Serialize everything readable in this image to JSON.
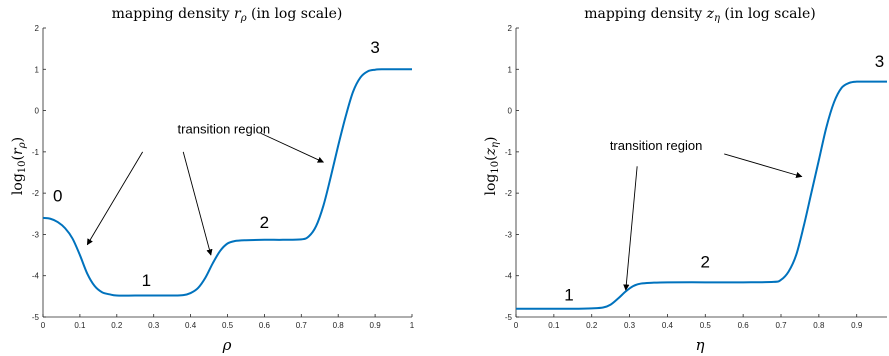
{
  "chart_data": [
    {
      "type": "line",
      "title": "mapping density r_ρ (in log scale)",
      "title_text": "mapping density ",
      "title_var": "r",
      "title_sub": "ρ",
      "title_suffix": " (in log scale)",
      "xlabel": "ρ",
      "ylabel": "log10(r_ρ)",
      "ylabel_base": "log",
      "ylabel_sub10": "10",
      "ylabel_open": "(",
      "ylabel_var": "r",
      "ylabel_var_sub": "ρ",
      "ylabel_close": ")",
      "xlim": [
        0,
        1
      ],
      "ylim": [
        -5,
        2
      ],
      "xticks": [
        "0",
        "0.1",
        "0.2",
        "0.3",
        "0.4",
        "0.5",
        "0.6",
        "0.7",
        "0.8",
        "0.9",
        "1"
      ],
      "yticks": [
        "-5",
        "-4",
        "-3",
        "-2",
        "-1",
        "0",
        "1",
        "2"
      ],
      "x": [
        0,
        0.02,
        0.04,
        0.06,
        0.08,
        0.1,
        0.12,
        0.14,
        0.16,
        0.18,
        0.2,
        0.25,
        0.3,
        0.35,
        0.38,
        0.4,
        0.42,
        0.44,
        0.46,
        0.48,
        0.5,
        0.52,
        0.55,
        0.6,
        0.65,
        0.7,
        0.72,
        0.74,
        0.76,
        0.78,
        0.8,
        0.82,
        0.84,
        0.86,
        0.88,
        0.9,
        0.92,
        0.95,
        1.0
      ],
      "y": [
        -2.6,
        -2.62,
        -2.7,
        -2.85,
        -3.1,
        -3.5,
        -3.95,
        -4.25,
        -4.4,
        -4.45,
        -4.48,
        -4.48,
        -4.48,
        -4.48,
        -4.47,
        -4.42,
        -4.3,
        -4.05,
        -3.7,
        -3.4,
        -3.22,
        -3.16,
        -3.14,
        -3.13,
        -3.13,
        -3.12,
        -3.05,
        -2.8,
        -2.3,
        -1.6,
        -0.85,
        -0.15,
        0.45,
        0.8,
        0.95,
        0.99,
        1.0,
        1.0,
        1.0
      ],
      "labels": [
        {
          "text": "0",
          "x": 0.04,
          "y": -2.2
        },
        {
          "text": "1",
          "x": 0.28,
          "y": -4.25
        },
        {
          "text": "2",
          "x": 0.6,
          "y": -2.85
        },
        {
          "text": "3",
          "x": 0.9,
          "y": 1.4
        }
      ],
      "annotation": {
        "text": "transition region",
        "x": 0.49,
        "y": -0.55,
        "arrows": [
          {
            "from": [
              0.27,
              -1.0
            ],
            "to": [
              0.12,
              -3.25
            ]
          },
          {
            "from": [
              0.38,
              -1.0
            ],
            "to": [
              0.455,
              -3.5
            ]
          },
          {
            "from": [
              0.59,
              -0.55
            ],
            "to": [
              0.76,
              -1.25
            ]
          }
        ]
      }
    },
    {
      "type": "line",
      "title": "mapping density z_η (in log scale)",
      "title_text": "mapping density ",
      "title_var": "z",
      "title_sub": "η",
      "title_suffix": " (in log scale)",
      "xlabel": "η",
      "ylabel": "log10(z_η)",
      "ylabel_base": "log",
      "ylabel_sub10": "10",
      "ylabel_open": "(",
      "ylabel_var": "z",
      "ylabel_var_sub": "η",
      "ylabel_close": ")",
      "xlim": [
        0,
        0.98
      ],
      "ylim": [
        -5,
        2
      ],
      "xticks": [
        "0",
        "0.1",
        "0.2",
        "0.3",
        "0.4",
        "0.5",
        "0.6",
        "0.7",
        "0.8",
        "0.9"
      ],
      "yticks": [
        "-5",
        "-4",
        "-3",
        "-2",
        "-1",
        "0",
        "1",
        "2"
      ],
      "x": [
        0,
        0.05,
        0.1,
        0.15,
        0.2,
        0.23,
        0.25,
        0.27,
        0.29,
        0.31,
        0.33,
        0.36,
        0.4,
        0.5,
        0.6,
        0.68,
        0.7,
        0.72,
        0.74,
        0.76,
        0.78,
        0.8,
        0.82,
        0.84,
        0.86,
        0.88,
        0.9,
        0.93,
        0.98
      ],
      "y": [
        -4.8,
        -4.8,
        -4.8,
        -4.8,
        -4.79,
        -4.77,
        -4.7,
        -4.55,
        -4.38,
        -4.25,
        -4.19,
        -4.17,
        -4.16,
        -4.16,
        -4.16,
        -4.15,
        -4.1,
        -3.9,
        -3.5,
        -2.8,
        -2.0,
        -1.2,
        -0.4,
        0.2,
        0.55,
        0.67,
        0.7,
        0.7,
        0.7
      ],
      "labels": [
        {
          "text": "1",
          "x": 0.14,
          "y": -4.6
        },
        {
          "text": "2",
          "x": 0.5,
          "y": -3.8
        },
        {
          "text": "3",
          "x": 0.96,
          "y": 1.05
        }
      ],
      "annotation": {
        "text": "transition region",
        "x": 0.37,
        "y": -0.95,
        "arrows": [
          {
            "from": [
              0.32,
              -1.35
            ],
            "to": [
              0.29,
              -4.35
            ]
          },
          {
            "from": [
              0.55,
              -1.05
            ],
            "to": [
              0.755,
              -1.6
            ]
          }
        ]
      }
    }
  ]
}
